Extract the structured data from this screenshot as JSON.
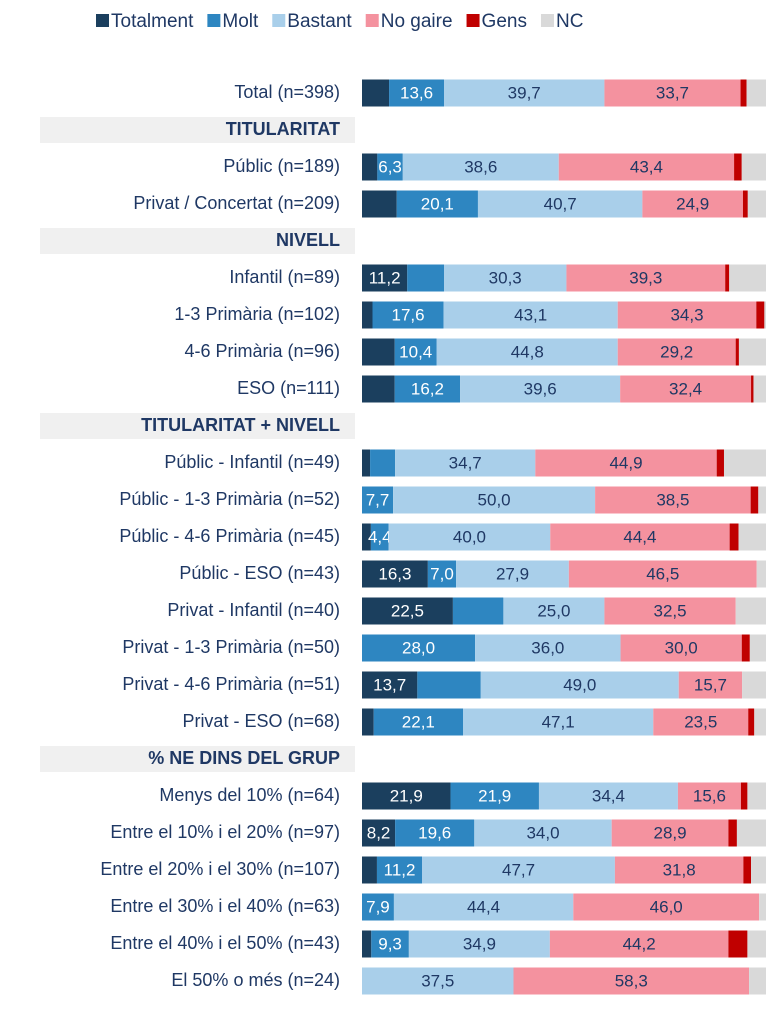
{
  "chart_data": {
    "type": "stacked-barh",
    "categories": [
      "Total  (n=398)",
      "TITULARITAT",
      "Públic (n=189)",
      "Privat / Concertat (n=209)",
      "NIVELL",
      "Infantil (n=89)",
      "1-3 Primària (n=102)",
      "4-6 Primària (n=96)",
      "ESO (n=111)",
      "TITULARITAT + NIVELL",
      "Públic - Infantil (n=49)",
      "Públic - 1-3 Primària (n=52)",
      "Públic - 4-6 Primària (n=45)",
      "Públic - ESO (n=43)",
      "Privat - Infantil (n=40)",
      "Privat - 1-3 Primària (n=50)",
      "Privat - 4-6 Primària (n=51)",
      "Privat - ESO (n=68)",
      "% NE DINS DEL GRUP",
      "Menys del 10% (n=64)",
      "Entre el 10% i el 20% (n=97)",
      "Entre el 20% i el 30% (n=107)",
      "Entre el 30% i el 40% (n=63)",
      "Entre el 40% i el 50% (n=43)",
      "El 50% o més (n=24)"
    ],
    "xlim": [
      0,
      100
    ],
    "series": [
      {
        "name": "Totalment",
        "color": "#1b3f5e",
        "values": [
          6.7,
          null,
          3.8,
          8.6,
          null,
          11.2,
          2.6,
          8.1,
          8.1,
          null,
          2.0,
          0,
          2.2,
          16.3,
          22.5,
          0,
          13.7,
          2.9,
          null,
          21.9,
          8.2,
          3.7,
          0,
          2.3,
          0
        ],
        "value_labels": [
          null,
          null,
          null,
          null,
          null,
          "11,2",
          null,
          null,
          null,
          null,
          null,
          null,
          null,
          "16,3",
          "22,5",
          null,
          "13,7",
          null,
          null,
          "21,9",
          "8,2",
          null,
          null,
          null,
          null
        ]
      },
      {
        "name": "Molt",
        "color": "#2e86c1",
        "values": [
          13.6,
          null,
          6.3,
          20.1,
          null,
          9.1,
          17.6,
          10.4,
          16.2,
          null,
          6.2,
          7.7,
          4.4,
          7.0,
          12.5,
          28.0,
          15.7,
          22.1,
          null,
          21.9,
          19.6,
          11.2,
          7.9,
          9.3,
          0
        ],
        "value_labels": [
          "13,6",
          null,
          "6,3",
          "20,1",
          null,
          null,
          "17,6",
          "10,4",
          "16,2",
          null,
          null,
          "7,7",
          "4,4",
          "7,0",
          null,
          "28,0",
          null,
          "22,1",
          null,
          "21,9",
          "19,6",
          "11,2",
          "7,9",
          "9,3",
          null
        ]
      },
      {
        "name": "Bastant",
        "color": "#a9cfea",
        "values": [
          39.7,
          null,
          38.6,
          40.7,
          null,
          30.3,
          43.1,
          44.8,
          39.6,
          null,
          34.7,
          50.0,
          40.0,
          27.9,
          25.0,
          36.0,
          49.0,
          47.1,
          null,
          34.4,
          34.0,
          47.7,
          44.4,
          34.9,
          37.5
        ],
        "value_labels": [
          "39,7",
          null,
          "38,6",
          "40,7",
          null,
          "30,3",
          "43,1",
          "44,8",
          "39,6",
          null,
          "34,7",
          "50,0",
          "40,0",
          "27,9",
          "25,0",
          "36,0",
          "49,0",
          "47,1",
          null,
          "34,4",
          "34,0",
          "47,7",
          "44,4",
          "34,9",
          "37,5"
        ]
      },
      {
        "name": "No gaire",
        "color": "#f4929f",
        "values": [
          33.7,
          null,
          43.4,
          24.9,
          null,
          39.3,
          34.3,
          29.2,
          32.4,
          null,
          44.9,
          38.5,
          44.4,
          46.5,
          32.5,
          30.0,
          15.7,
          23.5,
          null,
          15.6,
          28.9,
          31.8,
          46.0,
          44.2,
          58.3
        ],
        "value_labels": [
          "33,7",
          null,
          "43,4",
          "24,9",
          null,
          "39,3",
          "34,3",
          "29,2",
          "32,4",
          null,
          "44,9",
          "38,5",
          "44,4",
          "46,5",
          "32,5",
          "30,0",
          "15,7",
          "23,5",
          null,
          "15,6",
          "28,9",
          "31,8",
          "46,0",
          "44,2",
          "58,3"
        ]
      },
      {
        "name": "Gens",
        "color": "#c00000",
        "values": [
          1.5,
          null,
          1.9,
          1.2,
          null,
          1.0,
          2.0,
          0.8,
          0.6,
          null,
          1.8,
          1.9,
          2.2,
          0,
          0,
          2.0,
          0,
          1.5,
          null,
          1.6,
          2.1,
          1.9,
          0,
          4.7,
          0
        ]
      },
      {
        "name": "NC",
        "color": "#d9d9d9",
        "values": [
          4.8,
          null,
          6.0,
          4.5,
          null,
          9.1,
          0.4,
          6.7,
          3.1,
          null,
          10.4,
          1.9,
          6.8,
          2.3,
          7.5,
          4.0,
          5.9,
          2.9,
          null,
          4.6,
          7.2,
          3.7,
          1.7,
          4.6,
          4.2
        ]
      }
    ]
  }
}
